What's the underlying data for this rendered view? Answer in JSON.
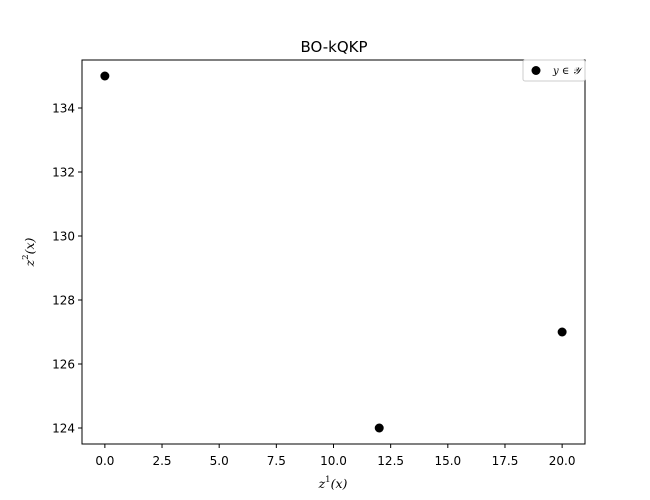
{
  "chart_data": {
    "type": "scatter",
    "title": "BO-kQKP",
    "xlabel": "z1(x)",
    "ylabel": "z2(x)",
    "xlim": [
      -1.0,
      21.0
    ],
    "ylim": [
      123.5,
      135.5
    ],
    "xticks": [
      "0.0",
      "2.5",
      "5.0",
      "7.5",
      "10.0",
      "12.5",
      "15.0",
      "17.5",
      "20.0"
    ],
    "yticks": [
      "124",
      "126",
      "128",
      "130",
      "132",
      "134"
    ],
    "legend_position": "top-right",
    "marker_color": "#000000",
    "series": [
      {
        "name": "y ∈ 𝒴",
        "points": [
          {
            "x": 0,
            "y": 135
          },
          {
            "x": 12,
            "y": 124
          },
          {
            "x": 20,
            "y": 127
          }
        ]
      }
    ]
  }
}
